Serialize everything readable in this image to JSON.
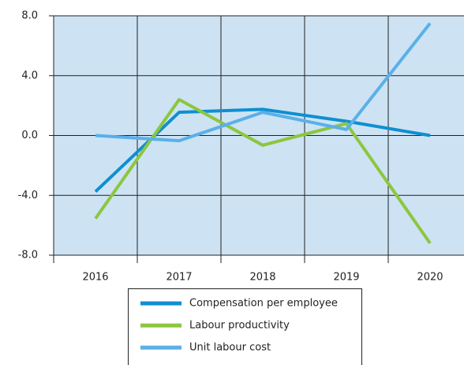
{
  "chart_data": {
    "type": "line",
    "categories": [
      "2016",
      "2017",
      "2018",
      "2019",
      "2020"
    ],
    "series": [
      {
        "name": "Compensation per employee",
        "color": "#0f8fd1",
        "values": [
          -3.75,
          1.55,
          1.75,
          0.95,
          0.0
        ]
      },
      {
        "name": "Labour productivity",
        "color": "#8cc63f",
        "values": [
          -5.55,
          2.4,
          -0.65,
          0.8,
          -7.2
        ]
      },
      {
        "name": "Unit labour cost",
        "color": "#5ab0e8",
        "values": [
          0.0,
          -0.35,
          1.55,
          0.4,
          7.5
        ]
      }
    ],
    "ylim": [
      -8,
      8
    ],
    "yticks": [
      {
        "value": 8,
        "label": "8.0"
      },
      {
        "value": 4,
        "label": "4.0"
      },
      {
        "value": 0,
        "label": "0.0"
      },
      {
        "value": -4,
        "label": "-4.0"
      },
      {
        "value": -8,
        "label": "-8.0"
      }
    ],
    "grid": true,
    "background": "#cde3f3",
    "legend": "bottom"
  }
}
